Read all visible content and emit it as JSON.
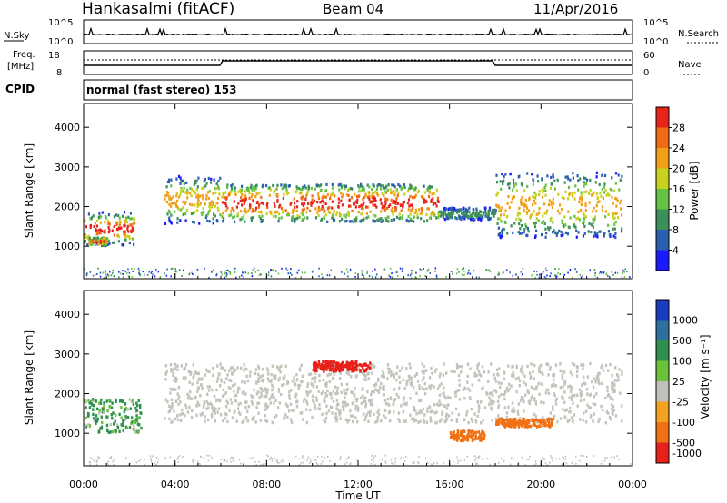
{
  "header": {
    "station": "Hankasalmi (fitACF)",
    "beam": "Beam 04",
    "date": "11/Apr/2016"
  },
  "top_panels": {
    "nsky_label": "N.Sky",
    "nsky_ticks": [
      "10^5",
      "10^0"
    ],
    "nsearch_label": "N.Search",
    "nsearch_ticks": [
      "10^5",
      "10^0"
    ],
    "freq_label_1": "Freq.",
    "freq_label_2": "[MHz]",
    "freq_ticks": [
      "18",
      "8"
    ],
    "nave_label": "Nave",
    "nave_ticks": [
      "60",
      "0"
    ],
    "cpid_label": "CPID",
    "cpid_text": "normal (fast stereo) 153"
  },
  "x_axis": {
    "label": "Time UT",
    "ticks": [
      "00:00",
      "04:00",
      "08:00",
      "12:00",
      "16:00",
      "20:00",
      "00:00"
    ]
  },
  "colors": {
    "power": [
      "#1a1aff",
      "#2a5fb0",
      "#3a8f5a",
      "#66c244",
      "#c8d21e",
      "#f0a018",
      "#f06a14",
      "#e8241a"
    ],
    "velocity": [
      "#1a3dbf",
      "#2d6f9f",
      "#2f8f4e",
      "#6cc13a",
      "#c0c0b8",
      "#f2a21c",
      "#f07014",
      "#e8201a"
    ],
    "velocity_gray": "#c4c4bc"
  },
  "chart_data": [
    {
      "type": "heatmap",
      "name": "power",
      "title": "",
      "xlabel": "",
      "ylabel": "Slant Range [km]",
      "x_range_hours": [
        0,
        24
      ],
      "ylim": [
        180,
        4600
      ],
      "y_ticks": [
        1000,
        2000,
        3000,
        4000
      ],
      "colorbar": {
        "label": "Power [dB]",
        "ticks": [
          "28",
          "24",
          "20",
          "16",
          "12",
          "8",
          "4"
        ],
        "range": [
          0,
          30
        ]
      },
      "echo_bands": [
        {
          "t0": 0.0,
          "t1": 2.2,
          "r0": 1050,
          "r1": 1900,
          "level": "mixed"
        },
        {
          "t0": 0.2,
          "t1": 1.0,
          "r0": 1050,
          "r1": 1250,
          "level": "high"
        },
        {
          "t0": 3.5,
          "t1": 6.0,
          "r0": 1600,
          "r1": 2800,
          "level": "medium"
        },
        {
          "t0": 6.0,
          "t1": 15.5,
          "r0": 1650,
          "r1": 2600,
          "level": "high"
        },
        {
          "t0": 15.5,
          "t1": 18.0,
          "r0": 1700,
          "r1": 2000,
          "level": "low"
        },
        {
          "t0": 18.0,
          "t1": 23.5,
          "r0": 1250,
          "r1": 2900,
          "level": "medium"
        }
      ]
    },
    {
      "type": "heatmap",
      "name": "velocity",
      "title": "",
      "xlabel": "Time UT",
      "ylabel": "Slant Range [km]",
      "x_range_hours": [
        0,
        24
      ],
      "ylim": [
        180,
        4600
      ],
      "y_ticks": [
        1000,
        2000,
        3000,
        4000
      ],
      "colorbar": {
        "label": "Velocity [m s⁻¹]",
        "ticks": [
          "1000",
          "500",
          "100",
          "25",
          "-25",
          "-100",
          "-500",
          "-1000"
        ],
        "range": [
          -1000,
          1000
        ]
      },
      "features": [
        {
          "t0": 0.0,
          "t1": 2.5,
          "r0": 1050,
          "r1": 1900,
          "velocity": 100
        },
        {
          "t0": 3.5,
          "t1": 23.5,
          "r0": 1300,
          "r1": 2800,
          "velocity": 0
        },
        {
          "t0": 10.0,
          "t1": 12.5,
          "r0": 2600,
          "r1": 2850,
          "velocity": -700
        },
        {
          "t0": 16.0,
          "t1": 17.5,
          "r0": 850,
          "r1": 1100,
          "velocity": -400
        },
        {
          "t0": 18.0,
          "t1": 20.5,
          "r0": 1200,
          "r1": 1400,
          "velocity": -400
        }
      ]
    }
  ]
}
